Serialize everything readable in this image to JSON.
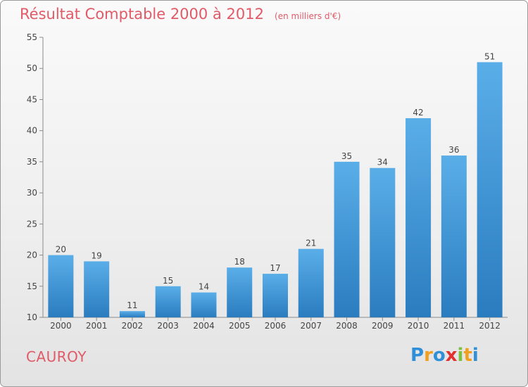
{
  "chart_data": {
    "type": "bar",
    "title": "Résultat Comptable 2000 à 2012",
    "subtitle": "(en milliers d'€)",
    "categories": [
      "2000",
      "2001",
      "2002",
      "2003",
      "2004",
      "2005",
      "2006",
      "2007",
      "2008",
      "2009",
      "2010",
      "2011",
      "2012"
    ],
    "values": [
      20,
      19,
      11,
      15,
      14,
      18,
      17,
      21,
      35,
      34,
      42,
      36,
      51
    ],
    "ylim": [
      10,
      55
    ],
    "yticks": [
      10,
      15,
      20,
      25,
      30,
      35,
      40,
      45,
      50,
      55
    ],
    "xlabel": "",
    "ylabel": "",
    "grid": false,
    "bar_color_top": "#5aaee8",
    "bar_color_bottom": "#2a7cbf"
  },
  "footer": {
    "commune": "CAUROY",
    "logo_letters": [
      "P",
      "r",
      "o",
      "x",
      "i",
      "t",
      "i"
    ],
    "logo_colors": [
      "#2f8fd8",
      "#f0a020",
      "#2f8fd8",
      "#e03030",
      "#7cc040",
      "#f0a020",
      "#2f8fd8"
    ]
  }
}
